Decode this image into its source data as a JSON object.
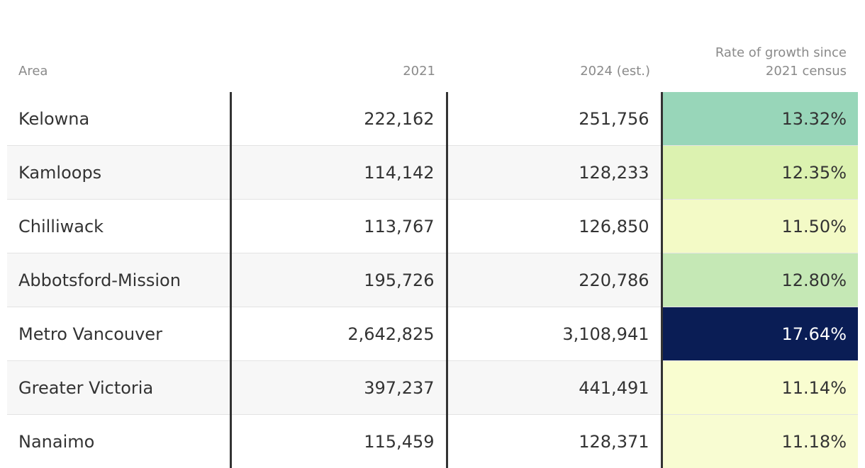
{
  "table": {
    "header": [
      "Area",
      "2021",
      "2024 (est.)",
      "Rate of growth since 2021 census"
    ],
    "rows": [
      [
        "Kelowna",
        "222,162",
        "251,756",
        "13.32%"
      ],
      [
        "Kamloops",
        "114,142",
        "128,233",
        "12.35%"
      ],
      [
        "Chilliwack",
        "113,767",
        "126,850",
        "11.50%"
      ],
      [
        "Abbotsford-Mission",
        "195,726",
        "220,786",
        "12.80%"
      ],
      [
        "Metro Vancouver",
        "2,642,825",
        "3,108,941",
        "17.64%"
      ],
      [
        "Greater Victoria",
        "397,237",
        "441,491",
        "11.14%"
      ],
      [
        "Nanaimo",
        "115,459",
        "128,371",
        "11.18%"
      ]
    ],
    "rate_colors": [
      {
        "background": "#98d6b9",
        "color": "#333333"
      },
      {
        "background": "#dcf2b0",
        "color": "#333333"
      },
      {
        "background": "#f3fac6",
        "color": "#333333"
      },
      {
        "background": "#c5e8b5",
        "color": "#333333"
      },
      {
        "background": "#0a1d55",
        "color": "#ffffff"
      },
      {
        "background": "#f9fdd0",
        "color": "#333333"
      },
      {
        "background": "#f8fcd2",
        "color": "#333333"
      }
    ]
  }
}
